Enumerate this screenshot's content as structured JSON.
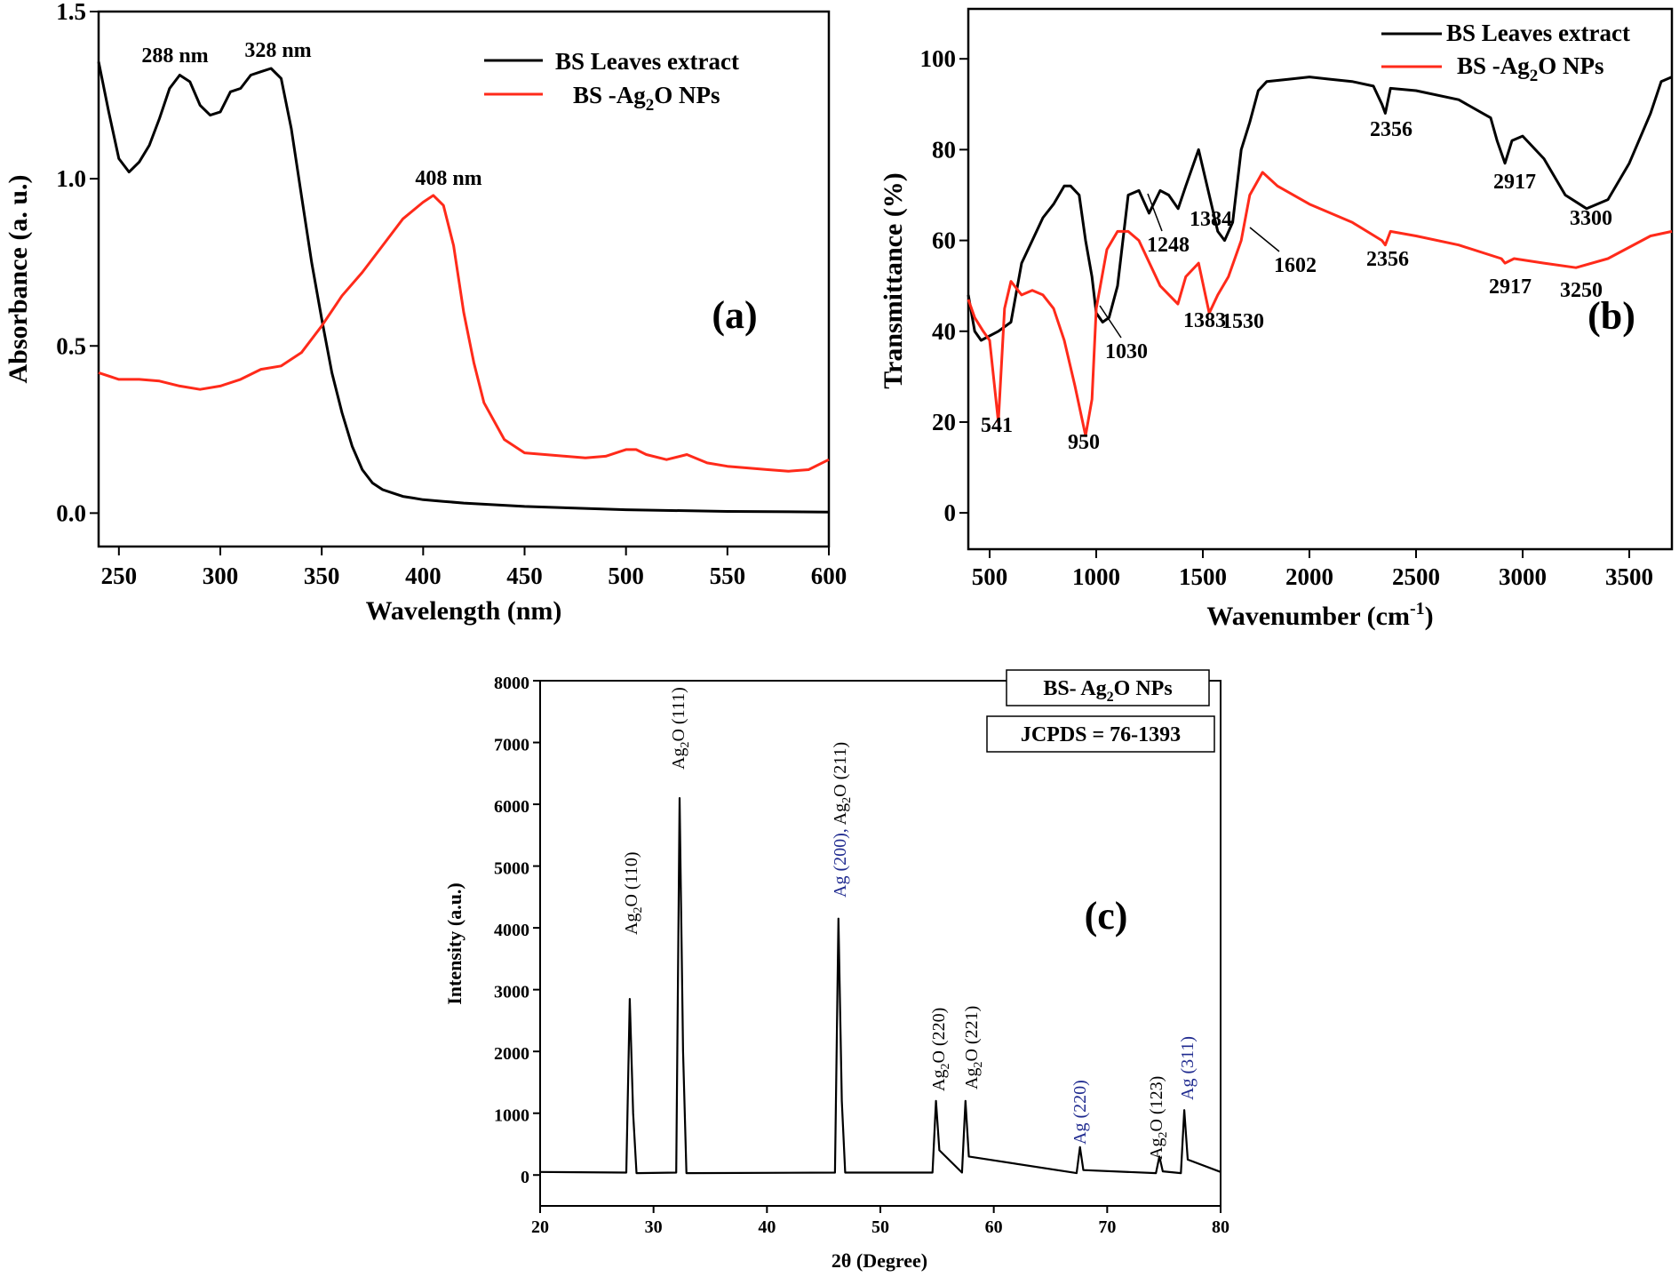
{
  "chart_data": [
    {
      "type": "line",
      "panel": "(a)",
      "xlabel": "Wavelength (nm)",
      "ylabel": "Absorbance (a. u.)",
      "xlim": [
        240,
        600
      ],
      "ylim": [
        -0.1,
        1.5
      ],
      "xticks": [
        250,
        300,
        350,
        400,
        450,
        500,
        550,
        600
      ],
      "yticks": [
        "0.0",
        "0.5",
        "1.0",
        "1.5"
      ],
      "ytick_values": [
        0,
        0.5,
        1.0,
        1.5
      ],
      "legend_position": "top-right",
      "series": [
        {
          "name": "BS Leaves extract",
          "color": "#000000",
          "x": [
            240,
            245,
            250,
            255,
            260,
            265,
            270,
            275,
            280,
            285,
            290,
            295,
            300,
            305,
            310,
            315,
            320,
            325,
            330,
            335,
            340,
            345,
            350,
            355,
            360,
            365,
            370,
            375,
            380,
            385,
            390,
            395,
            400,
            410,
            420,
            450,
            500,
            550,
            600
          ],
          "values": [
            1.35,
            1.2,
            1.06,
            1.02,
            1.05,
            1.1,
            1.18,
            1.27,
            1.31,
            1.29,
            1.22,
            1.19,
            1.2,
            1.26,
            1.27,
            1.31,
            1.32,
            1.33,
            1.3,
            1.15,
            0.95,
            0.75,
            0.58,
            0.42,
            0.3,
            0.2,
            0.13,
            0.09,
            0.07,
            0.06,
            0.05,
            0.045,
            0.04,
            0.035,
            0.03,
            0.02,
            0.01,
            0.005,
            0.003
          ]
        },
        {
          "name": "BS -Ag2O NPs",
          "color": "#ff2a1a",
          "x": [
            240,
            250,
            260,
            270,
            280,
            290,
            300,
            310,
            320,
            330,
            340,
            350,
            360,
            370,
            380,
            390,
            400,
            405,
            410,
            415,
            420,
            425,
            430,
            440,
            450,
            460,
            470,
            480,
            490,
            500,
            505,
            510,
            520,
            530,
            540,
            550,
            560,
            570,
            580,
            590,
            600
          ],
          "values": [
            0.42,
            0.4,
            0.4,
            0.395,
            0.38,
            0.37,
            0.38,
            0.4,
            0.43,
            0.44,
            0.48,
            0.56,
            0.65,
            0.72,
            0.8,
            0.88,
            0.93,
            0.95,
            0.92,
            0.8,
            0.6,
            0.45,
            0.33,
            0.22,
            0.18,
            0.175,
            0.17,
            0.165,
            0.17,
            0.19,
            0.19,
            0.175,
            0.16,
            0.175,
            0.15,
            0.14,
            0.135,
            0.13,
            0.125,
            0.13,
            0.16
          ]
        }
      ],
      "legend_entries": [
        "BS Leaves extract",
        "BS -Ag",
        "2",
        "O NPs"
      ],
      "annotations": [
        "288 nm",
        "328 nm",
        "408 nm"
      ]
    },
    {
      "type": "line",
      "panel": "(b)",
      "xlabel": "Wavenumber (cm",
      "xlabel_sup": "-1",
      "xlabel_end": ")",
      "ylabel": "Transmittance (%)",
      "xlim": [
        400,
        3700
      ],
      "ylim": [
        -8,
        111
      ],
      "xticks": [
        500,
        1000,
        1500,
        2000,
        2500,
        3000,
        3500
      ],
      "yticks": [
        0,
        20,
        40,
        60,
        80,
        100
      ],
      "legend_position": "top-right",
      "series": [
        {
          "name": "BS Leaves extract",
          "color": "#000000",
          "x": [
            400,
            430,
            460,
            500,
            541,
            600,
            650,
            700,
            750,
            800,
            850,
            880,
            920,
            950,
            980,
            1000,
            1030,
            1060,
            1100,
            1150,
            1200,
            1248,
            1300,
            1340,
            1384,
            1420,
            1480,
            1530,
            1570,
            1602,
            1640,
            1680,
            1720,
            1760,
            1800,
            1900,
            2000,
            2100,
            2200,
            2300,
            2340,
            2356,
            2380,
            2500,
            2700,
            2850,
            2880,
            2917,
            2950,
            3000,
            3100,
            3200,
            3300,
            3400,
            3500,
            3600,
            3650,
            3700
          ],
          "values": [
            48,
            40,
            38,
            39,
            40,
            42,
            55,
            60,
            65,
            68,
            72,
            72,
            70,
            60,
            52,
            44,
            42,
            43,
            50,
            70,
            71,
            66,
            71,
            70,
            67,
            72,
            80,
            70,
            62,
            60,
            64,
            80,
            86,
            93,
            95,
            95.5,
            96,
            95.5,
            95,
            94,
            90,
            88,
            93.5,
            93,
            91,
            87,
            82,
            77,
            82,
            83,
            78,
            70,
            67,
            69,
            77,
            88,
            95,
            96
          ]
        },
        {
          "name": "BS -Ag2O NPs",
          "color": "#ff2a1a",
          "x": [
            400,
            430,
            470,
            500,
            541,
            570,
            600,
            650,
            700,
            750,
            800,
            850,
            900,
            950,
            980,
            1000,
            1050,
            1100,
            1150,
            1200,
            1300,
            1383,
            1420,
            1480,
            1530,
            1570,
            1620,
            1680,
            1720,
            1780,
            1850,
            2000,
            2200,
            2340,
            2356,
            2380,
            2500,
            2700,
            2900,
            2917,
            2960,
            3100,
            3250,
            3400,
            3600,
            3700
          ],
          "values": [
            47,
            43,
            40,
            38,
            20,
            45,
            51,
            48,
            49,
            48,
            45,
            38,
            28,
            17,
            25,
            45,
            58,
            62,
            62,
            60,
            50,
            46,
            52,
            55,
            44,
            48,
            52,
            60,
            70,
            75,
            72,
            68,
            64,
            60,
            59,
            62,
            61,
            59,
            56,
            55,
            56,
            55,
            54,
            56,
            61,
            62
          ]
        }
      ],
      "legend_entries": [
        "BS Leaves extract",
        "BS -Ag",
        "2",
        "O NPs"
      ],
      "annotations": [
        "541",
        "950",
        "1030",
        "1248",
        "1384",
        "1383",
        "1530",
        "1602",
        "2356",
        "2356",
        "2917",
        "2917",
        "3300",
        "3250"
      ]
    },
    {
      "type": "line",
      "panel": "(c)",
      "xlabel": "2θ (Degree)",
      "ylabel": "Intensity (a.u.)",
      "xlim": [
        20,
        80
      ],
      "ylim": [
        -500,
        8000
      ],
      "xticks": [
        20,
        30,
        40,
        50,
        60,
        70,
        80
      ],
      "yticks": [
        0,
        1000,
        2000,
        3000,
        4000,
        5000,
        6000,
        7000,
        8000
      ],
      "series": [
        {
          "name": "BS- Ag2O NPs",
          "color": "#000000",
          "x": [
            20,
            27.6,
            27.9,
            28.2,
            28.5,
            32.0,
            32.3,
            32.6,
            32.9,
            46.0,
            46.3,
            46.6,
            46.9,
            54.6,
            54.9,
            55.2,
            57.2,
            57.5,
            57.8,
            67.3,
            67.6,
            67.9,
            74.3,
            74.6,
            74.9,
            76.5,
            76.8,
            77.1,
            80
          ],
          "values": [
            50,
            40,
            2850,
            1000,
            30,
            40,
            6100,
            2000,
            30,
            40,
            4150,
            1200,
            40,
            40,
            1200,
            400,
            40,
            1200,
            300,
            30,
            450,
            80,
            30,
            300,
            60,
            30,
            1050,
            250,
            50
          ]
        }
      ],
      "box_title_parts": [
        "BS- Ag",
        "2",
        "O NPs"
      ],
      "box_reference": "JCPDS = 76-1393",
      "annotations": [
        "Ag2O (110)",
        "Ag2O (111)",
        "Ag (200), Ag2O (211)",
        "Ag2O (220)",
        "Ag2O (221)",
        "Ag (220)",
        "Ag2O (123)",
        "Ag (311)"
      ]
    }
  ],
  "peak_labels": {
    "a_288": "288 nm",
    "a_328": "328 nm",
    "a_408": "408 nm",
    "b_541": "541",
    "b_950": "950",
    "b_1030": "1030",
    "b_1248": "1248",
    "b_1384": "1384",
    "b_1383": "1383",
    "b_1530": "1530",
    "b_1602": "1602",
    "b_2356_black": "2356",
    "b_2356_red": "2356",
    "b_2917_black": "2917",
    "b_2917_red": "2917",
    "b_3300": "3300",
    "b_3250": "3250",
    "c_ag2o": "Ag",
    "c_sub2": "2",
    "c_o": "O",
    "c_110": " (110)",
    "c_111": " (111)",
    "c_211": " (211)",
    "c_220": " (220)",
    "c_221": " (221)",
    "c_123": " (123)",
    "c_ag200": "Ag (200), ",
    "c_ag220": "Ag (220)",
    "c_ag311": "Ag (311)"
  },
  "panels": {
    "a": "(a)",
    "b": "(b)",
    "c": "(c)"
  },
  "colors": {
    "black_series": "#000000",
    "red_series": "#ff2a1a",
    "blue_labels": "#1f2a8f"
  }
}
